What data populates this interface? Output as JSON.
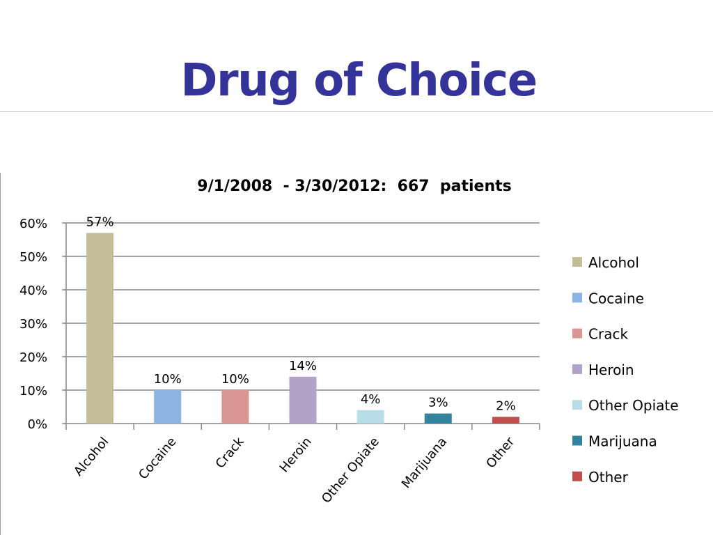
{
  "slide": {
    "title": "Drug of Choice"
  },
  "chart_data": {
    "type": "bar",
    "title": "9/1/2008  - 3/30/2012:  667  patients",
    "xlabel": "",
    "ylabel": "",
    "categories": [
      "Alcohol",
      "Cocaine",
      "Crack",
      "Heroin",
      "Other Opiate",
      "Marijuana",
      "Other"
    ],
    "values": [
      57,
      10,
      10,
      14,
      4,
      3,
      2
    ],
    "data_labels": [
      "57%",
      "10%",
      "10%",
      "14%",
      "4%",
      "3%",
      "2%"
    ],
    "colors": [
      "#c4bd97",
      "#8db3e2",
      "#d99694",
      "#b3a2c7",
      "#b7dee8",
      "#31849b",
      "#c0504d"
    ],
    "ylim": [
      0,
      60
    ],
    "yticks": [
      0,
      10,
      20,
      30,
      40,
      50,
      60
    ],
    "ytick_labels": [
      "0%",
      "10%",
      "20%",
      "30%",
      "40%",
      "50%",
      "60%"
    ],
    "grid": true,
    "legend": {
      "placement": "right",
      "entries": [
        "Alcohol",
        "Cocaine",
        "Crack",
        "Heroin",
        "Other Opiate",
        "Marijuana",
        "Other"
      ]
    },
    "axis_color": "#868686",
    "title_color": "#333399"
  }
}
